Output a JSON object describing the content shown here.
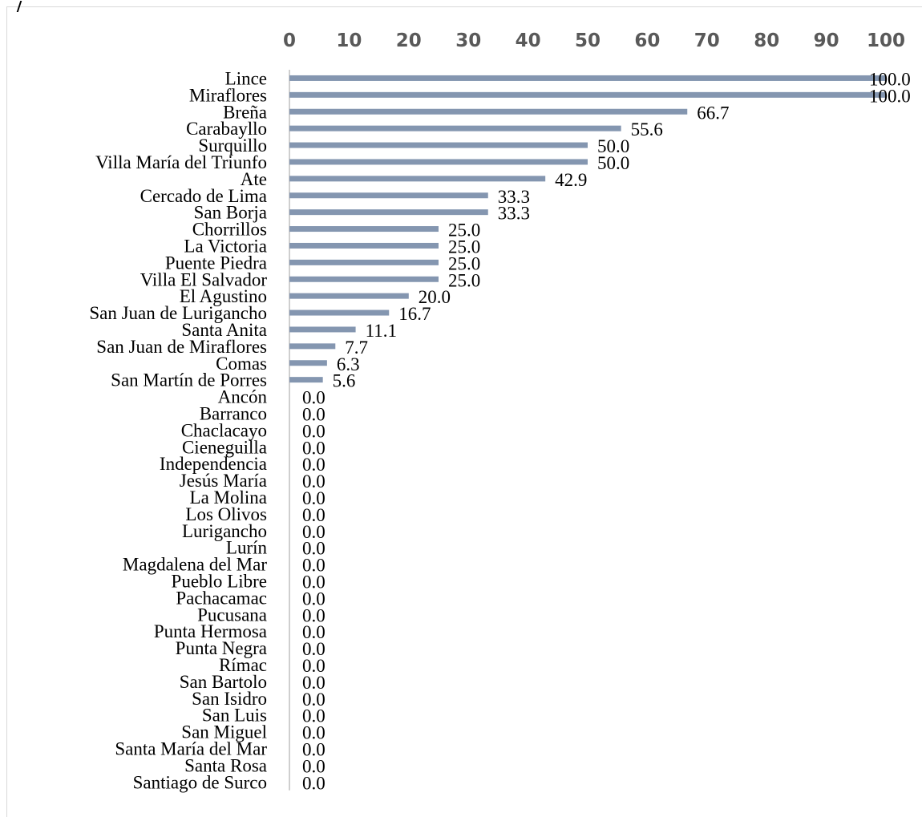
{
  "chart_data": {
    "type": "bar",
    "orientation": "horizontal",
    "title": "",
    "xlabel": "",
    "ylabel": "",
    "xlim": [
      0,
      100
    ],
    "x_ticks": [
      0,
      10,
      20,
      30,
      40,
      50,
      60,
      70,
      80,
      90,
      100
    ],
    "x_axis_position": "top",
    "grid": false,
    "legend": "none",
    "bar_color": "#8496b0",
    "categories": [
      "Lince",
      "Miraflores",
      "Breña",
      "Carabayllo",
      "Surquillo",
      "Villa María del Triunfo",
      "Ate",
      "Cercado de Lima",
      "San Borja",
      "Chorrillos",
      "La Victoria",
      "Puente Piedra",
      "Villa El Salvador",
      "El Agustino",
      "San Juan de Lurigancho",
      "Santa Anita",
      "San Juan de Miraflores",
      "Comas",
      "San Martín de Porres",
      "Ancón",
      "Barranco",
      "Chaclacayo",
      "Cieneguilla",
      "Independencia",
      "Jesús María",
      "La Molina",
      "Los Olivos",
      "Lurigancho",
      "Lurín",
      "Magdalena del Mar",
      "Pueblo Libre",
      "Pachacamac",
      "Pucusana",
      "Punta Hermosa",
      "Punta Negra",
      "Rímac",
      "San Bartolo",
      "San Isidro",
      "San Luis",
      "San Miguel",
      "Santa María del Mar",
      "Santa Rosa",
      "Santiago de Surco"
    ],
    "values": [
      100.0,
      100.0,
      66.7,
      55.6,
      50.0,
      50.0,
      42.9,
      33.3,
      33.3,
      25.0,
      25.0,
      25.0,
      25.0,
      20.0,
      16.7,
      11.1,
      7.7,
      6.3,
      5.6,
      0.0,
      0.0,
      0.0,
      0.0,
      0.0,
      0.0,
      0.0,
      0.0,
      0.0,
      0.0,
      0.0,
      0.0,
      0.0,
      0.0,
      0.0,
      0.0,
      0.0,
      0.0,
      0.0,
      0.0,
      0.0,
      0.0,
      0.0,
      0.0
    ],
    "value_labels": [
      "100.0",
      "100.0",
      "66.7",
      "55.6",
      "50.0",
      "50.0",
      "42.9",
      "33.3",
      "33.3",
      "25.0",
      "25.0",
      "25.0",
      "25.0",
      "20.0",
      "16.7",
      "11.1",
      "7.7",
      "6.3",
      "5.6",
      "0.0",
      "0.0",
      "0.0",
      "0.0",
      "0.0",
      "0.0",
      "0.0",
      "0.0",
      "0.0",
      "0.0",
      "0.0",
      "0.0",
      "0.0",
      "0.0",
      "0.0",
      "0.0",
      "0.0",
      "0.0",
      "0.0",
      "0.0",
      "0.0",
      "0.0",
      "0.0",
      "0.0"
    ]
  }
}
